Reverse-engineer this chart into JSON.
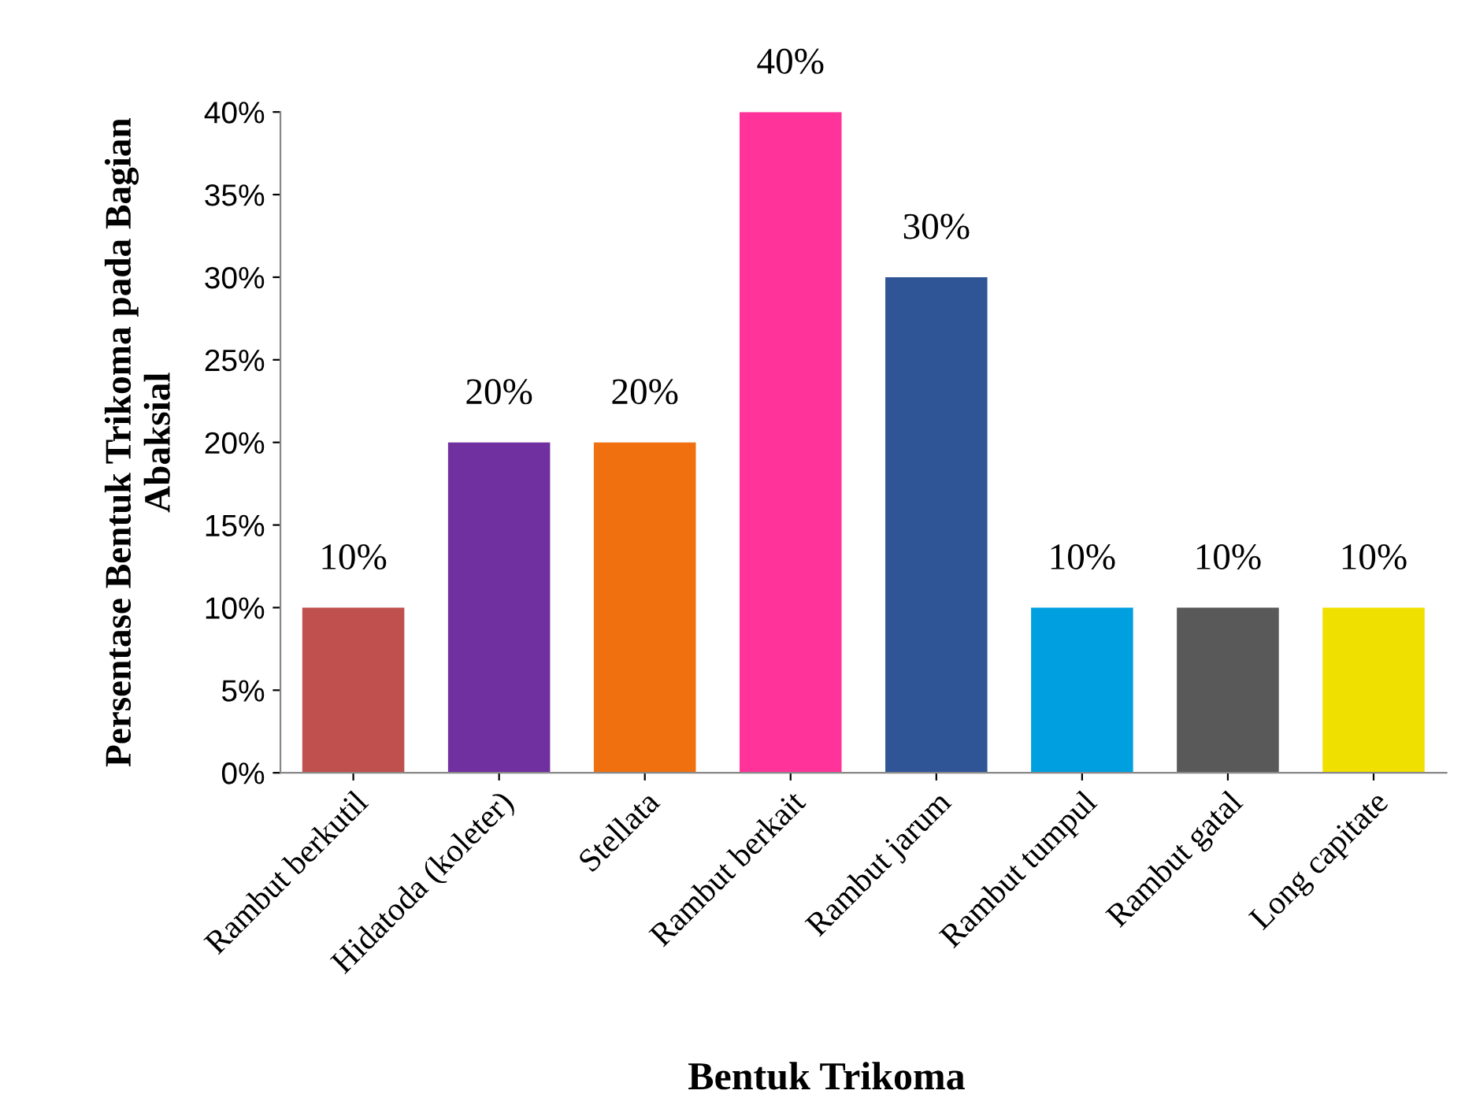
{
  "chart_data": {
    "type": "bar",
    "xlabel": "Bentuk Trikoma",
    "ylabel": "Persentase Bentuk Trikoma pada Bagian Abaksial",
    "categories": [
      "Rambut berkutil",
      "Hidatoda (koleter)",
      "Stellata",
      "Rambut berkait",
      "Rambut jarum",
      "Rambut tumpul",
      "Rambut gatal",
      "Long capitate"
    ],
    "values": [
      10,
      20,
      20,
      40,
      30,
      10,
      10,
      10
    ],
    "colors": [
      "#c0504d",
      "#7030a0",
      "#f07010",
      "#ff3399",
      "#2f5597",
      "#00a0e0",
      "#595959",
      "#f0e000"
    ],
    "value_labels": [
      "10%",
      "20%",
      "20%",
      "40%",
      "30%",
      "10%",
      "10%",
      "10%"
    ],
    "ylim": [
      0,
      40
    ],
    "yticks": [
      {
        "value": 0,
        "label": "0%"
      },
      {
        "value": 5,
        "label": "5%"
      },
      {
        "value": 10,
        "label": "10%"
      },
      {
        "value": 15,
        "label": "15%"
      },
      {
        "value": 20,
        "label": "20%"
      },
      {
        "value": 25,
        "label": "25%"
      },
      {
        "value": 30,
        "label": "30%"
      },
      {
        "value": 35,
        "label": "35%"
      },
      {
        "value": 40,
        "label": "40%"
      }
    ],
    "grid": false,
    "legend": false
  }
}
